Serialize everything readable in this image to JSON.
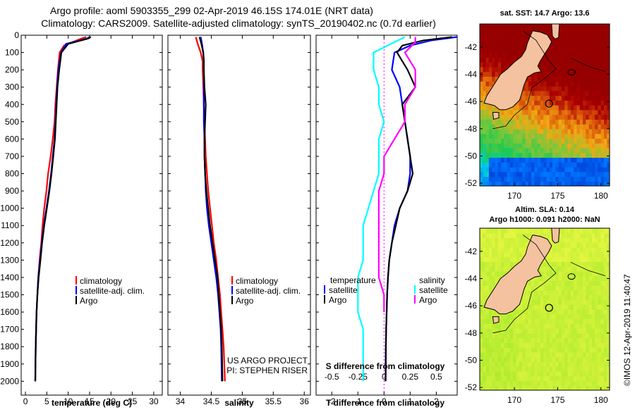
{
  "title": {
    "line1": "Argo profile: aoml 5903355_299 02-Apr-2019 46.15S 174.01E (NRT data)",
    "line2": "Climatology: CARS2009. Satellite-adjusted climatology: synTS_20190402.nc (0.7d earlier)"
  },
  "colors": {
    "climatology": "#ff0000",
    "satellite": "#0000ff",
    "argo": "#000000",
    "sat_salinity": "#00ffff",
    "argo_salinity": "#ff00ff",
    "land": "#f5c29f"
  },
  "depth_axis": {
    "ticks": [
      0,
      100,
      200,
      300,
      400,
      500,
      600,
      700,
      800,
      900,
      1000,
      1100,
      1200,
      1300,
      1400,
      1500,
      1600,
      1700,
      1800,
      1900,
      2000
    ],
    "range": [
      0,
      2080
    ]
  },
  "chart_data": [
    {
      "type": "line",
      "name": "temperature",
      "xlabel": "temperature (deg C)",
      "xlim": [
        -1,
        32
      ],
      "xticks": [
        0,
        5,
        10,
        15,
        20,
        25,
        30
      ],
      "legend": [
        "climatology",
        "satellite-adj. clim.",
        "Argo"
      ],
      "series": [
        {
          "name": "climatology",
          "color": "#ff0000",
          "x": [
            14.2,
            13.0,
            9.0,
            8.0,
            7.6,
            7.3,
            7.0,
            6.8,
            6.4,
            5.9,
            5.3,
            4.9,
            4.4,
            4.0,
            3.7,
            3.3,
            3.0,
            2.8,
            2.6,
            2.5,
            2.4,
            2.3
          ],
          "depth": [
            10,
            20,
            60,
            100,
            200,
            300,
            400,
            500,
            600,
            700,
            800,
            900,
            1000,
            1100,
            1200,
            1300,
            1400,
            1500,
            1600,
            1700,
            1800,
            2000
          ]
        },
        {
          "name": "satellite-adj. clim.",
          "color": "#0000ff",
          "x": [
            15.0,
            14.3,
            9.5,
            8.3,
            7.7,
            7.4,
            7.2,
            7.0,
            6.8,
            6.4,
            6.0,
            5.5,
            4.9,
            4.3,
            3.8,
            3.4,
            3.0,
            2.8,
            2.6,
            2.5,
            2.4,
            2.3
          ],
          "depth": [
            10,
            20,
            50,
            100,
            200,
            300,
            400,
            500,
            600,
            700,
            800,
            900,
            1000,
            1100,
            1200,
            1300,
            1400,
            1500,
            1600,
            1700,
            1800,
            2000
          ]
        },
        {
          "name": "Argo",
          "color": "#000000",
          "x": [
            15.3,
            14.6,
            10.0,
            8.4,
            7.9,
            7.5,
            7.3,
            7.1,
            6.9,
            6.5,
            6.1,
            5.6,
            5.0,
            4.4,
            3.9,
            3.5,
            3.1,
            2.8,
            2.6,
            2.5,
            2.4,
            2.3
          ],
          "depth": [
            10,
            20,
            50,
            100,
            200,
            300,
            400,
            500,
            600,
            700,
            800,
            900,
            1000,
            1100,
            1200,
            1300,
            1400,
            1500,
            1600,
            1700,
            1800,
            2000
          ]
        }
      ]
    },
    {
      "type": "line",
      "name": "salinity",
      "xlabel": "salinity",
      "xlim": [
        33.8,
        36.1
      ],
      "xticks": [
        34,
        34.5,
        35,
        35.5,
        36
      ],
      "xticklabels": [
        "34",
        "34.5",
        "35",
        "35.5",
        "36"
      ],
      "legend": [
        "climatology",
        "satellite-adj. clim.",
        "Argo"
      ],
      "annotation": [
        "US ARGO PROJECT",
        "PI: STEPHEN RISER"
      ],
      "series": [
        {
          "name": "climatology",
          "color": "#ff0000",
          "x": [
            34.25,
            34.28,
            34.33,
            34.36,
            34.36,
            34.37,
            34.38,
            34.39,
            34.4,
            34.41,
            34.43,
            34.45,
            34.48,
            34.51,
            34.54,
            34.58,
            34.61,
            34.64,
            34.66,
            34.68,
            34.7,
            34.72
          ],
          "depth": [
            10,
            50,
            100,
            150,
            200,
            300,
            400,
            500,
            600,
            700,
            800,
            900,
            1000,
            1100,
            1200,
            1300,
            1400,
            1500,
            1600,
            1700,
            1800,
            2000
          ]
        },
        {
          "name": "satellite-adj. clim.",
          "color": "#0000ff",
          "x": [
            34.33,
            34.35,
            34.37,
            34.38,
            34.38,
            34.38,
            34.38,
            34.38,
            34.39,
            34.39,
            34.4,
            34.41,
            34.43,
            34.46,
            34.5,
            34.54,
            34.58,
            34.61,
            34.63,
            34.65,
            34.66,
            34.67
          ],
          "depth": [
            10,
            50,
            100,
            150,
            200,
            300,
            400,
            500,
            600,
            700,
            800,
            900,
            1000,
            1100,
            1200,
            1300,
            1400,
            1500,
            1600,
            1700,
            1800,
            2000
          ]
        },
        {
          "name": "Argo",
          "color": "#000000",
          "x": [
            34.31,
            34.34,
            34.37,
            34.38,
            34.38,
            34.39,
            34.41,
            34.4,
            34.39,
            34.39,
            34.4,
            34.42,
            34.45,
            34.48,
            34.52,
            34.56,
            34.6,
            34.62,
            34.64,
            34.66,
            34.67,
            34.68
          ],
          "depth": [
            10,
            50,
            100,
            150,
            200,
            300,
            400,
            500,
            600,
            700,
            800,
            900,
            1000,
            1100,
            1200,
            1300,
            1400,
            1500,
            1600,
            1700,
            1800,
            2000
          ]
        }
      ]
    },
    {
      "type": "line",
      "name": "difference",
      "xlabel": "T difference from climatology",
      "xlabel_top": "S difference from climatology",
      "xlim": [
        -2.6,
        2.8
      ],
      "xticks": [
        -2,
        -1,
        0,
        1,
        2
      ],
      "top_ticks": [
        -0.5,
        -0.25,
        0,
        0.25,
        0.5
      ],
      "top_ticklabels": [
        "-0.5",
        "-0.25",
        "0",
        "0.25",
        "0.5"
      ],
      "legend_left_title": "temperature",
      "legend_left": [
        "satellite",
        "Argo"
      ],
      "legend_right_title": "salinity",
      "legend_right": [
        "satellite",
        "Argo"
      ],
      "series": [
        {
          "name": "T satellite",
          "color": "#0000ff",
          "x": [
            2.8,
            1.8,
            1.0,
            0.4,
            0.3,
            0.6,
            0.7,
            0.8,
            0.9,
            1.0,
            1.0,
            0.9,
            0.6,
            0.4,
            0.3,
            0.2,
            0.15,
            0.12,
            0.1,
            0.08,
            0.07,
            0.06
          ],
          "depth": [
            10,
            30,
            60,
            100,
            200,
            300,
            400,
            500,
            600,
            700,
            800,
            900,
            1000,
            1100,
            1200,
            1300,
            1400,
            1500,
            1600,
            1700,
            1800,
            2000
          ]
        },
        {
          "name": "T Argo",
          "color": "#000000",
          "x": [
            2.6,
            1.5,
            0.7,
            0.5,
            0.9,
            1.2,
            0.7,
            0.8,
            0.9,
            1.0,
            1.1,
            0.9,
            0.6,
            0.45,
            0.3,
            0.2,
            0.15,
            0.12,
            0.1,
            0.08,
            0.07,
            0.06
          ],
          "depth": [
            10,
            30,
            60,
            100,
            200,
            300,
            400,
            500,
            600,
            700,
            800,
            900,
            1000,
            1100,
            1200,
            1300,
            1400,
            1500,
            1600,
            1700,
            1800,
            2000
          ]
        },
        {
          "name": "S satellite",
          "color": "#00ffff",
          "x": [
            0.2,
            0.1,
            -0.1,
            -0.1,
            -0.05,
            -0.05,
            0.0,
            -0.05,
            -0.05,
            -0.05,
            -0.1,
            -0.15,
            -0.2,
            -0.2,
            -0.2,
            -0.25,
            -0.25,
            -0.25,
            -0.2,
            -0.2,
            -0.2,
            -0.2
          ],
          "depth": [
            10,
            40,
            100,
            200,
            300,
            400,
            500,
            600,
            700,
            800,
            900,
            1000,
            1100,
            1200,
            1300,
            1400,
            1500,
            1600,
            1700,
            1800,
            1900,
            2000
          ]
        },
        {
          "name": "S Argo",
          "color": "#ff00ff",
          "x": [
            0.3,
            0.3,
            0.2,
            0.3,
            0.3,
            0.2,
            0.2,
            0.1,
            0.0,
            0.0,
            -0.05,
            -0.05,
            -0.05,
            -0.05,
            -0.05,
            -0.05,
            0.0,
            0.0
          ],
          "depth": [
            10,
            40,
            100,
            200,
            300,
            400,
            500,
            600,
            700,
            800,
            900,
            1000,
            1100,
            1200,
            1300,
            1400,
            1500,
            1600
          ]
        }
      ]
    },
    {
      "type": "heatmap",
      "name": "sst-map",
      "title": "sat. SST: 14.7 Argo: 13.6",
      "xticks": [
        170,
        175,
        180
      ],
      "yticks": [
        -42,
        -44,
        -46,
        -48,
        -50,
        -52
      ],
      "xlim": [
        166,
        181
      ],
      "ylim": [
        -52.2,
        -40.3
      ],
      "argo_position": {
        "lon": 174.01,
        "lat": -46.15
      }
    },
    {
      "type": "heatmap",
      "name": "sla-map",
      "title_line1": "Altim. SLA: 0.14",
      "title_line2": "Argo h1000: 0.091 h2000: NaN",
      "xticks": [
        170,
        175,
        180
      ],
      "yticks": [
        -42,
        -44,
        -46,
        -48,
        -50,
        -52
      ],
      "xlim": [
        166,
        181
      ],
      "ylim": [
        -52.2,
        -40.3
      ],
      "argo_position": {
        "lon": 174.01,
        "lat": -46.15
      }
    }
  ],
  "credit": "©IMOS 12-Apr-2019 11:40:47"
}
